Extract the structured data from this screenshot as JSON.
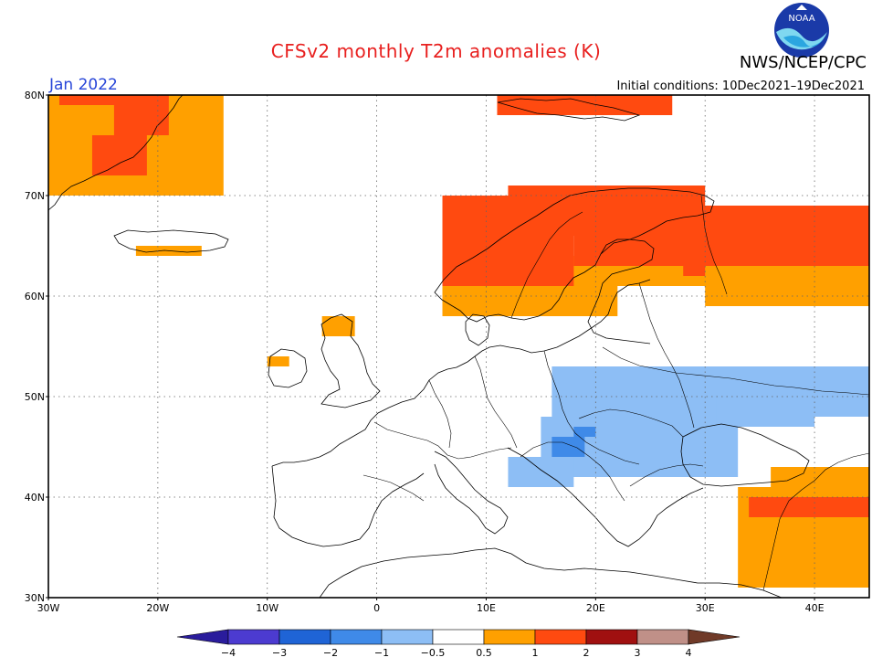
{
  "header": {
    "title": "CFSv2 monthly T2m anomalies (K)",
    "org": "NWS/NCEP/CPC",
    "logo_text": "NOAA",
    "target_month": "Jan 2022",
    "initial_conditions": "Initial conditions: 10Dec2021–19Dec2021"
  },
  "map": {
    "lon_range": [
      -30,
      45
    ],
    "lat_range": [
      30,
      80
    ],
    "lat_labels": [
      {
        "lat": 80,
        "label": "80N"
      },
      {
        "lat": 70,
        "label": "70N"
      },
      {
        "lat": 60,
        "label": "60N"
      },
      {
        "lat": 50,
        "label": "50N"
      },
      {
        "lat": 40,
        "label": "40N"
      },
      {
        "lat": 30,
        "label": "30N"
      }
    ],
    "lon_labels": [
      {
        "lon": -30,
        "label": "30W"
      },
      {
        "lon": -20,
        "label": "20W"
      },
      {
        "lon": -10,
        "label": "10W"
      },
      {
        "lon": 0,
        "label": "0"
      },
      {
        "lon": 10,
        "label": "10E"
      },
      {
        "lon": 20,
        "label": "20E"
      },
      {
        "lon": 30,
        "label": "30E"
      },
      {
        "lon": 40,
        "label": "40E"
      }
    ],
    "gridlines": "dotted",
    "anomaly_regions": [
      {
        "name": "Greenland",
        "level": "0.5 to 1",
        "cells": [
          [
            -30,
            70,
            -14,
            80
          ]
        ]
      },
      {
        "name": "Greenland east coast",
        "level": "1 to 2",
        "cells": [
          [
            -26,
            72,
            -21,
            76
          ],
          [
            -24,
            76,
            -19,
            79
          ],
          [
            -29,
            79,
            -19,
            80
          ]
        ]
      },
      {
        "name": "Iceland",
        "level": "0.5 to 1",
        "cells": [
          [
            -22,
            64,
            -16,
            65
          ]
        ]
      },
      {
        "name": "Svalbard",
        "level": "1 to 2",
        "cells": [
          [
            11,
            78,
            27,
            80
          ]
        ]
      },
      {
        "name": "Scotland",
        "level": "0.5 to 1",
        "cells": [
          [
            -5,
            56,
            -2,
            58
          ]
        ]
      },
      {
        "name": "Ireland",
        "level": "0.5 to 1",
        "cells": [
          [
            -10,
            53,
            -8,
            54
          ]
        ]
      },
      {
        "name": "Scandinavia",
        "level": "0.5 to 1",
        "cells": [
          [
            6,
            58,
            22,
            64
          ],
          [
            20,
            61,
            32,
            68
          ]
        ]
      },
      {
        "name": "Scandinavia",
        "level": "1 to 2",
        "cells": [
          [
            6,
            61,
            18,
            70
          ],
          [
            12,
            66,
            30,
            71
          ],
          [
            28,
            62,
            45,
            69
          ],
          [
            18,
            63,
            32,
            66
          ]
        ]
      },
      {
        "name": "NW Russia",
        "level": "0.5 to 1",
        "cells": [
          [
            30,
            59,
            45,
            63
          ]
        ]
      },
      {
        "name": "Central & Eastern Europe",
        "level": "-1 to -0.5",
        "cells": [
          [
            16,
            48,
            45,
            53
          ],
          [
            15,
            42,
            33,
            48
          ],
          [
            12,
            41,
            18,
            44
          ],
          [
            31,
            47,
            40,
            50
          ]
        ]
      },
      {
        "name": "Balkans",
        "level": "-2 to -1",
        "cells": [
          [
            16,
            44,
            19,
            46
          ],
          [
            18,
            46,
            20,
            47
          ]
        ]
      },
      {
        "name": "Turkey",
        "level": "0.5 to 1",
        "cells": [
          [
            33,
            31,
            45,
            41
          ],
          [
            36,
            40,
            45,
            43
          ]
        ]
      },
      {
        "name": "Turkey",
        "level": "1 to 2",
        "cells": [
          [
            34,
            38,
            45,
            40
          ]
        ]
      }
    ]
  },
  "colorbar": {
    "ticks": [
      "−4",
      "−3",
      "−2",
      "−1",
      "−0.5",
      "0.5",
      "1",
      "2",
      "3",
      "4"
    ],
    "colors": [
      "#2a1c9c",
      "#4c3bd0",
      "#1f64d6",
      "#3f8ae8",
      "#8dbef5",
      "#ffffff",
      "#ffa000",
      "#ff4a10",
      "#a01010",
      "#c09088",
      "#703a28"
    ]
  }
}
